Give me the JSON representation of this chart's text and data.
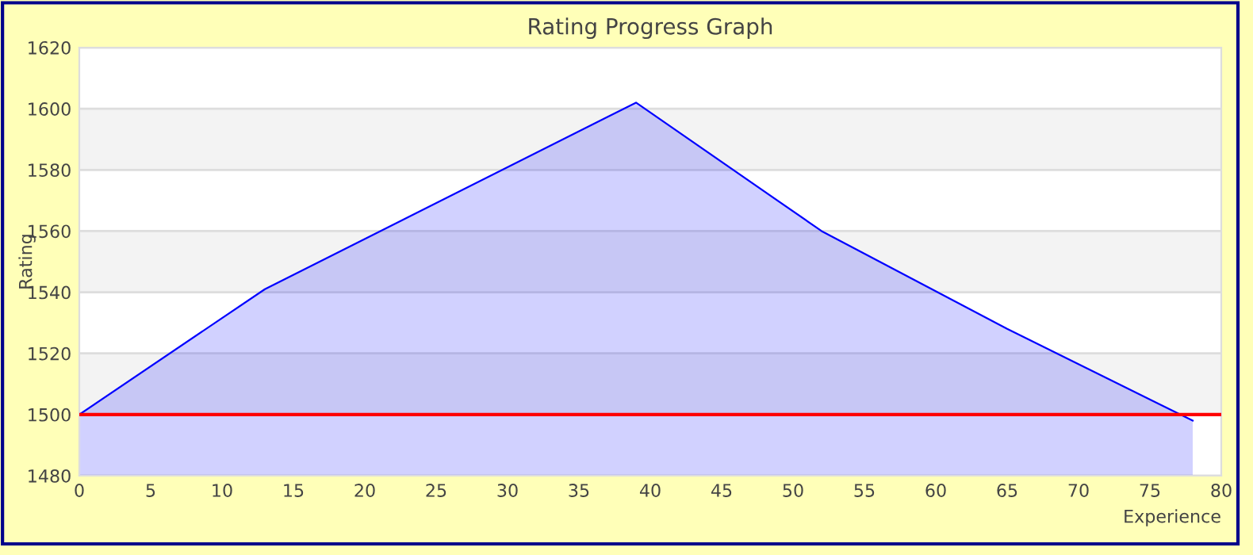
{
  "chart_data": {
    "type": "area",
    "title": "Rating Progress Graph",
    "xlabel": "Experience",
    "ylabel": "Rating",
    "x": [
      0,
      13,
      39,
      52,
      65,
      78
    ],
    "series": [
      {
        "color": "#0000ff",
        "values": [
          1500,
          1541,
          1602,
          1560,
          1528,
          1498
        ]
      }
    ],
    "xlim": [
      0,
      80
    ],
    "xticks": [
      0,
      5,
      10,
      15,
      20,
      25,
      30,
      35,
      40,
      45,
      50,
      55,
      60,
      65,
      70,
      75,
      80
    ],
    "ylim": [
      1480,
      1620
    ],
    "yticks": [
      1480,
      1500,
      1520,
      1540,
      1560,
      1580,
      1600,
      1620
    ],
    "ref_lines": [
      {
        "axis": "y",
        "value": 1500,
        "color": "#ff0000"
      }
    ],
    "grid": "y",
    "legend": false,
    "marker": "none",
    "line_style": "solid"
  }
}
